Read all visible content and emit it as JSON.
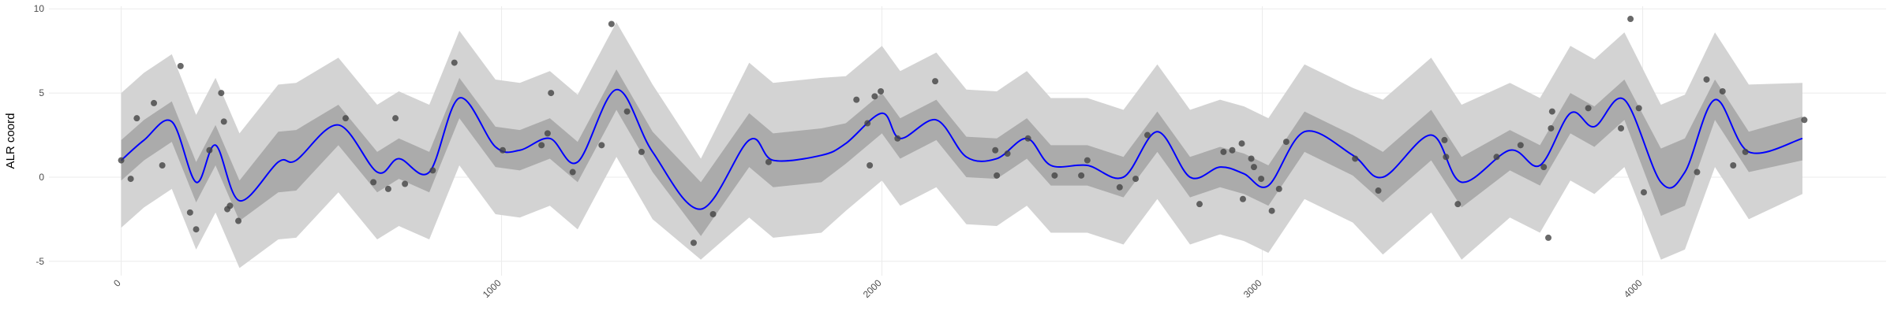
{
  "chart_data": {
    "type": "line",
    "y_label": "ALR coord",
    "xlim": [
      -190,
      4640
    ],
    "ylim": [
      -5.85,
      10.15
    ],
    "xticks": [
      0,
      1000,
      2000,
      3000,
      4000
    ],
    "yticks": [
      -5,
      0,
      5,
      10
    ],
    "grid": true,
    "line": {
      "color": "#0000ff",
      "x": [
        0,
        60,
        133,
        197,
        248,
        311,
        413,
        460,
        571,
        673,
        730,
        810,
        889,
        984,
        1048,
        1127,
        1200,
        1302,
        1397,
        1524,
        1651,
        1714,
        1841,
        1905,
        2000,
        2048,
        2143,
        2222,
        2302,
        2381,
        2444,
        2540,
        2635,
        2724,
        2810,
        2889,
        2952,
        3016,
        3111,
        3238,
        3317,
        3444,
        3524,
        3651,
        3730,
        3810,
        3873,
        3952,
        4048,
        4111,
        4190,
        4279,
        4420
      ],
      "values": [
        1.0,
        2.2,
        3.3,
        -0.3,
        1.9,
        -1.4,
        0.9,
        1.0,
        3.1,
        0.3,
        1.1,
        0.3,
        4.7,
        1.8,
        1.6,
        2.3,
        0.9,
        5.2,
        1.5,
        -1.9,
        2.2,
        1.0,
        1.3,
        2.0,
        3.8,
        2.3,
        3.4,
        1.2,
        1.1,
        2.3,
        0.7,
        0.7,
        0.0,
        2.7,
        0.0,
        0.6,
        0.2,
        -0.5,
        2.7,
        1.3,
        0.0,
        2.5,
        -0.3,
        1.6,
        0.7,
        3.8,
        3.0,
        4.6,
        -0.3,
        0.3,
        4.6,
        1.5,
        2.3
      ]
    },
    "ribbons": [
      {
        "color": "#d3d3d3",
        "lower": [
          -3.0,
          -1.8,
          -0.7,
          -4.3,
          -2.1,
          -5.4,
          -3.7,
          -3.6,
          -0.9,
          -3.7,
          -2.9,
          -3.7,
          0.7,
          -2.2,
          -2.4,
          -1.7,
          -3.1,
          1.2,
          -2.5,
          -4.9,
          -2.4,
          -3.6,
          -3.3,
          -2.0,
          -0.2,
          -1.7,
          -0.6,
          -2.8,
          -2.9,
          -1.7,
          -3.3,
          -3.3,
          -4.0,
          -1.3,
          -4.0,
          -3.4,
          -3.8,
          -4.5,
          -1.3,
          -2.7,
          -4.6,
          -2.1,
          -4.9,
          -2.4,
          -3.3,
          -0.2,
          -1.0,
          0.6,
          -4.9,
          -4.3,
          0.6,
          -2.5,
          -1.0
        ],
        "upper": [
          5.0,
          6.2,
          7.3,
          3.7,
          5.9,
          2.6,
          5.5,
          5.6,
          7.1,
          4.3,
          5.1,
          4.3,
          8.7,
          5.8,
          5.6,
          6.3,
          4.9,
          9.2,
          5.5,
          1.1,
          6.8,
          5.6,
          5.9,
          6.0,
          7.8,
          6.3,
          7.4,
          5.2,
          5.1,
          6.3,
          4.7,
          4.7,
          4.0,
          6.7,
          4.0,
          4.6,
          4.2,
          3.5,
          6.7,
          5.3,
          4.6,
          7.1,
          4.3,
          5.6,
          4.7,
          7.8,
          7.0,
          8.6,
          4.3,
          4.9,
          8.6,
          5.5,
          5.6
        ]
      },
      {
        "color": "#ababab",
        "lower": [
          -0.2,
          1.0,
          2.1,
          -1.5,
          0.7,
          -2.6,
          -0.9,
          -0.8,
          1.9,
          -0.9,
          -0.1,
          -0.9,
          3.5,
          0.6,
          0.4,
          1.1,
          -0.3,
          4.0,
          0.3,
          -3.5,
          0.6,
          -0.6,
          -0.3,
          0.8,
          2.6,
          1.1,
          2.2,
          0.0,
          -0.1,
          1.1,
          -0.5,
          -0.5,
          -1.2,
          1.5,
          -1.2,
          -0.6,
          -1.0,
          -1.7,
          1.5,
          0.1,
          -1.5,
          1.0,
          -1.8,
          0.4,
          -0.5,
          2.6,
          1.8,
          3.4,
          -2.3,
          -1.7,
          3.4,
          0.3,
          1.0
        ],
        "upper": [
          2.2,
          3.4,
          4.5,
          0.9,
          3.1,
          -0.2,
          2.7,
          2.8,
          4.3,
          1.5,
          2.3,
          1.5,
          5.9,
          3.0,
          2.8,
          3.5,
          2.1,
          6.4,
          2.7,
          -0.3,
          3.8,
          2.6,
          2.9,
          3.2,
          5.0,
          3.5,
          4.6,
          2.4,
          2.3,
          3.5,
          1.9,
          1.9,
          1.2,
          3.9,
          1.2,
          1.8,
          1.4,
          0.7,
          3.9,
          2.5,
          1.5,
          4.0,
          1.2,
          2.8,
          1.9,
          5.0,
          4.2,
          5.8,
          1.7,
          2.3,
          5.8,
          2.7,
          3.6
        ]
      }
    ],
    "points": {
      "color": "#444444",
      "x": [
        0,
        25,
        41,
        86,
        108,
        156,
        181,
        197,
        232,
        263,
        270,
        279,
        286,
        308,
        590,
        663,
        702,
        721,
        746,
        819,
        876,
        1003,
        1105,
        1121,
        1130,
        1187,
        1263,
        1289,
        1330,
        1368,
        1505,
        1556,
        1702,
        1933,
        1962,
        1968,
        1981,
        1997,
        2041,
        2140,
        2298,
        2302,
        2330,
        2384,
        2454,
        2524,
        2540,
        2625,
        2667,
        2698,
        2835,
        2898,
        2921,
        2946,
        2949,
        2971,
        2978,
        2997,
        3025,
        3044,
        3063,
        3244,
        3305,
        3479,
        3483,
        3514,
        3616,
        3679,
        3740,
        3752,
        3759,
        3762,
        3857,
        3943,
        3968,
        3990,
        4003,
        4143,
        4168,
        4210,
        4238,
        4270,
        4425
      ],
      "values": [
        1.0,
        -0.1,
        3.5,
        4.4,
        0.7,
        6.6,
        -2.1,
        -3.1,
        1.6,
        5.0,
        3.3,
        -1.9,
        -1.7,
        -2.6,
        3.5,
        -0.3,
        -0.7,
        3.5,
        -0.4,
        0.4,
        6.8,
        1.6,
        1.9,
        2.6,
        5.0,
        0.3,
        1.9,
        9.1,
        3.9,
        1.5,
        -3.9,
        -2.2,
        0.9,
        4.6,
        3.2,
        0.7,
        4.8,
        5.1,
        2.3,
        5.7,
        1.6,
        0.1,
        1.4,
        2.3,
        0.1,
        0.1,
        1.0,
        -0.6,
        -0.1,
        2.5,
        -1.6,
        1.5,
        1.6,
        2.0,
        -1.3,
        1.1,
        0.6,
        -0.1,
        -2.0,
        -0.7,
        2.1,
        1.1,
        -0.8,
        2.2,
        1.2,
        -1.6,
        1.2,
        1.9,
        0.6,
        -3.6,
        2.9,
        3.9,
        4.1,
        2.9,
        9.4,
        4.1,
        -0.9,
        0.3,
        5.8,
        5.1,
        0.7,
        1.5,
        3.4
      ]
    }
  }
}
